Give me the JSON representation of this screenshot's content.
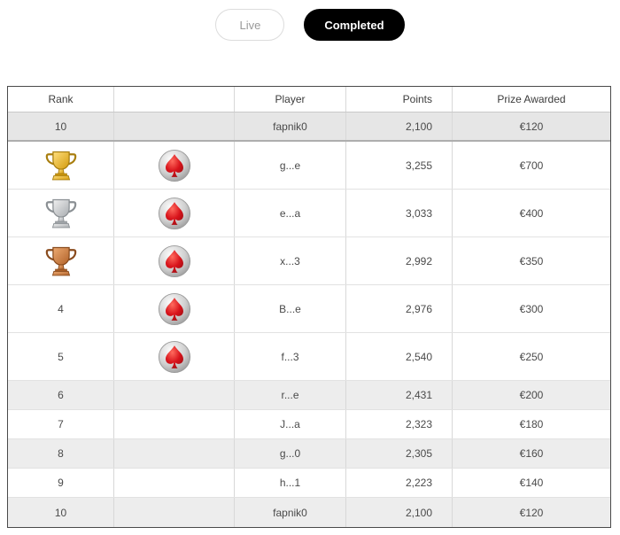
{
  "filters": {
    "live_label": "Live",
    "completed_label": "Completed"
  },
  "leaderboard": {
    "headers": {
      "rank": "Rank",
      "avatar": "",
      "player": "Player",
      "points": "Points",
      "prize": "Prize Awarded"
    },
    "rows": [
      {
        "rank": "10",
        "trophy": "",
        "avatar": false,
        "player": "fapnik0",
        "points": "2,100",
        "prize": "€120",
        "pinned": true,
        "shaded": true
      },
      {
        "rank": "1",
        "trophy": "gold",
        "avatar": true,
        "player": "g...e",
        "points": "3,255",
        "prize": "€700",
        "pinned": false,
        "shaded": false
      },
      {
        "rank": "2",
        "trophy": "silver",
        "avatar": true,
        "player": "e...a",
        "points": "3,033",
        "prize": "€400",
        "pinned": false,
        "shaded": false
      },
      {
        "rank": "3",
        "trophy": "bronze",
        "avatar": true,
        "player": "x...3",
        "points": "2,992",
        "prize": "€350",
        "pinned": false,
        "shaded": false
      },
      {
        "rank": "4",
        "trophy": "",
        "avatar": true,
        "player": "B...e",
        "points": "2,976",
        "prize": "€300",
        "pinned": false,
        "shaded": false
      },
      {
        "rank": "5",
        "trophy": "",
        "avatar": true,
        "player": "f...3",
        "points": "2,540",
        "prize": "€250",
        "pinned": false,
        "shaded": false
      },
      {
        "rank": "6",
        "trophy": "",
        "avatar": false,
        "player": "r...e",
        "points": "2,431",
        "prize": "€200",
        "pinned": false,
        "shaded": true
      },
      {
        "rank": "7",
        "trophy": "",
        "avatar": false,
        "player": "J...a",
        "points": "2,323",
        "prize": "€180",
        "pinned": false,
        "shaded": false
      },
      {
        "rank": "8",
        "trophy": "",
        "avatar": false,
        "player": "g...0",
        "points": "2,305",
        "prize": "€160",
        "pinned": false,
        "shaded": true
      },
      {
        "rank": "9",
        "trophy": "",
        "avatar": false,
        "player": "h...1",
        "points": "2,223",
        "prize": "€140",
        "pinned": false,
        "shaded": false
      },
      {
        "rank": "10",
        "trophy": "",
        "avatar": false,
        "player": "fapnik0",
        "points": "2,100",
        "prize": "€120",
        "pinned": false,
        "shaded": true
      }
    ]
  },
  "icons": {
    "spade_red": "#d8131b",
    "avatar_ring": "#9a9a9a",
    "trophy_colors": {
      "gold": {
        "light": "#ffdf7e",
        "dark": "#d29a0a",
        "outline": "#a97f10"
      },
      "silver": {
        "light": "#f0f0f0",
        "dark": "#a7abaf",
        "outline": "#8b9094"
      },
      "bronze": {
        "light": "#edaa72",
        "dark": "#b06128",
        "outline": "#8a4c1e"
      }
    }
  }
}
